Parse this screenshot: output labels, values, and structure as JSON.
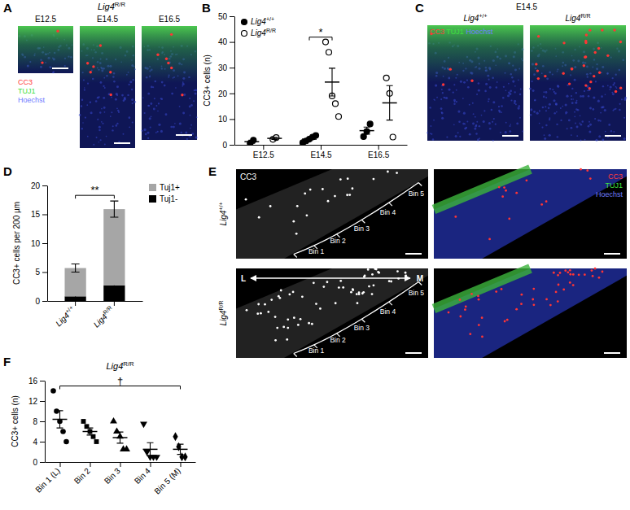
{
  "chart_data": [
    {
      "type": "scatter",
      "panel": "B",
      "y_label": "CC3+ cells (n)",
      "categories": [
        "E12.5",
        "E14.5",
        "E16.5"
      ],
      "ylim": [
        0,
        50
      ],
      "yticks": [
        0,
        10,
        20,
        30,
        40,
        50
      ],
      "legend": "upper left",
      "series": [
        {
          "name": "Lig4+/+",
          "color": "#000000",
          "marker": "filled-circle",
          "values": [
            [
              0.6,
              1.8
            ],
            [
              0.8,
              1.5,
              2.2,
              3,
              3.6
            ],
            [
              3.2,
              5.2,
              8.1
            ]
          ],
          "mean": [
            1.2,
            2.2,
            5.5
          ],
          "sem": [
            0.6,
            0.5,
            1.4
          ]
        },
        {
          "name": "Lig4R/R",
          "color": "#000000",
          "marker": "open-circle",
          "values": [
            [
              2.1,
              2.8
            ],
            [
              40,
              36,
              19,
              16,
              11
            ],
            [
              26,
              20,
              3
            ]
          ],
          "mean": [
            2.5,
            24.4,
            16.3
          ],
          "sem": [
            0.4,
            5.4,
            6.7
          ]
        }
      ],
      "annotations": [
        {
          "text": "*",
          "category": 1
        }
      ]
    },
    {
      "type": "bar",
      "stacked": true,
      "panel": "D",
      "y_label": "CC3+ cells per 200 µm",
      "categories": [
        "Lig4+/+",
        "Lig4R/R"
      ],
      "ylim": [
        0,
        20
      ],
      "yticks": [
        0,
        5,
        10,
        15,
        20
      ],
      "legend": "upper right",
      "series": [
        {
          "name": "Tuj1-",
          "color": "#000000",
          "values": [
            0.8,
            2.7
          ],
          "errors": [
            0.3,
            0.4
          ]
        },
        {
          "name": "Tuj1+",
          "color": "#a6a6a6",
          "values": [
            4.9,
            13.2
          ],
          "errors": [
            0.7,
            1.4
          ]
        }
      ],
      "annotations": [
        {
          "text": "**",
          "from": 0,
          "to": 1
        }
      ]
    },
    {
      "type": "scatter",
      "panel": "F",
      "title": "Lig4R/R",
      "y_label": "CC3+ cells (n)",
      "categories": [
        "Bin 1 (L)",
        "Bin 2",
        "Bin 3",
        "Bin 4",
        "Bin 5 (M)"
      ],
      "ylim": [
        0,
        16
      ],
      "yticks": [
        0,
        4,
        8,
        12,
        16
      ],
      "series": [
        {
          "color": "#000000",
          "marker": "circle",
          "values": [
            [
              14,
              10,
              8,
              6,
              4
            ],
            null,
            null,
            null,
            null
          ],
          "mean": [
            8.4,
            null,
            null,
            null,
            null
          ],
          "sem": [
            1.7,
            null,
            null,
            null,
            null
          ]
        },
        {
          "color": "#000000",
          "marker": "square",
          "values": [
            null,
            [
              8,
              7,
              6,
              5,
              4
            ],
            null,
            null,
            null
          ],
          "mean": [
            null,
            6,
            null,
            null,
            null
          ],
          "sem": [
            null,
            0.7,
            null,
            null,
            null
          ]
        },
        {
          "color": "#000000",
          "marker": "triangle",
          "values": [
            null,
            null,
            [
              8,
              6,
              5,
              2.5,
              2.5
            ],
            null,
            null
          ],
          "mean": [
            null,
            null,
            4.8,
            null,
            null
          ],
          "sem": [
            null,
            null,
            1.1,
            null,
            null
          ]
        },
        {
          "color": "#000000",
          "marker": "triangle-down",
          "values": [
            null,
            null,
            null,
            [
              7.5,
              2,
              1,
              1,
              1
            ],
            null
          ],
          "mean": [
            null,
            null,
            null,
            2.5,
            null
          ],
          "sem": [
            null,
            null,
            null,
            1.3,
            null
          ]
        },
        {
          "color": "#000000",
          "marker": "diamond",
          "values": [
            null,
            null,
            null,
            null,
            [
              5,
              3,
              1,
              1
            ]
          ],
          "mean": [
            null,
            null,
            null,
            null,
            2.5
          ],
          "sem": [
            null,
            null,
            null,
            null,
            1
          ]
        }
      ],
      "annotations": [
        {
          "text": "†",
          "from": 0,
          "to": 4
        }
      ]
    }
  ],
  "image_panels": [
    {
      "panel": "A",
      "title": "Lig4R/R",
      "columns": [
        "E12.5",
        "E14.5",
        "E16.5"
      ],
      "channels": [
        {
          "name": "CC3",
          "color": "#ff3b3b"
        },
        {
          "name": "TUJ1",
          "color": "#3fe03f"
        },
        {
          "name": "Hoechst",
          "color": "#6f7dff"
        }
      ]
    },
    {
      "panel": "C",
      "title": "E14.5",
      "columns": [
        "Lig4+/+",
        "Lig4R/R"
      ],
      "channels": [
        {
          "name": "CC3",
          "color": "#ff3b3b"
        },
        {
          "name": "TUJ1",
          "color": "#3fe03f"
        },
        {
          "name": "Hoechst",
          "color": "#6f7dff"
        }
      ]
    },
    {
      "panel": "E",
      "rows": [
        "Lig4+/+",
        "Lig4R/R"
      ],
      "single_channel": "CC3",
      "channels": [
        {
          "name": "CC3",
          "color": "#ff3b3b"
        },
        {
          "name": "TUJ1",
          "color": "#3fe03f"
        },
        {
          "name": "Hoechst",
          "color": "#6f7dff"
        }
      ],
      "bins": [
        "Bin 1",
        "Bin 2",
        "Bin 3",
        "Bin 4",
        "Bin 5"
      ],
      "axis_ends": [
        "L",
        "M"
      ]
    }
  ]
}
